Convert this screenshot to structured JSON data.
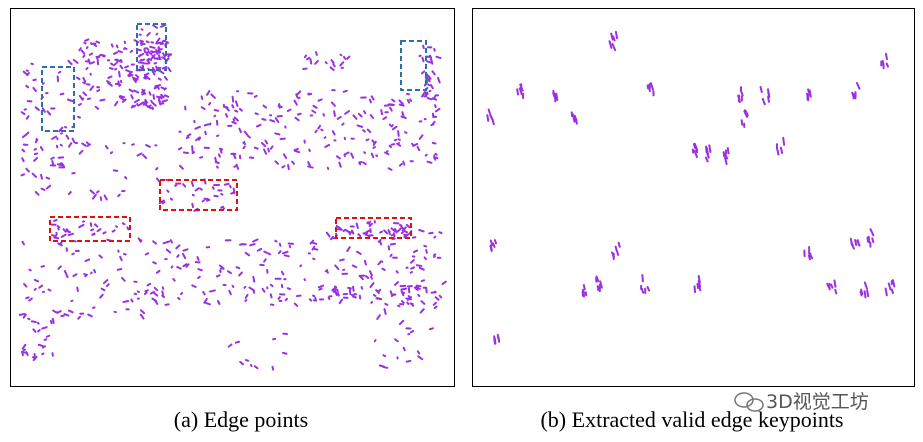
{
  "figure": {
    "panels": [
      {
        "caption": "(a) Edge points"
      },
      {
        "caption": "(b) Extracted valid edge keypoints"
      }
    ]
  },
  "watermark": "3D视觉工坊"
}
